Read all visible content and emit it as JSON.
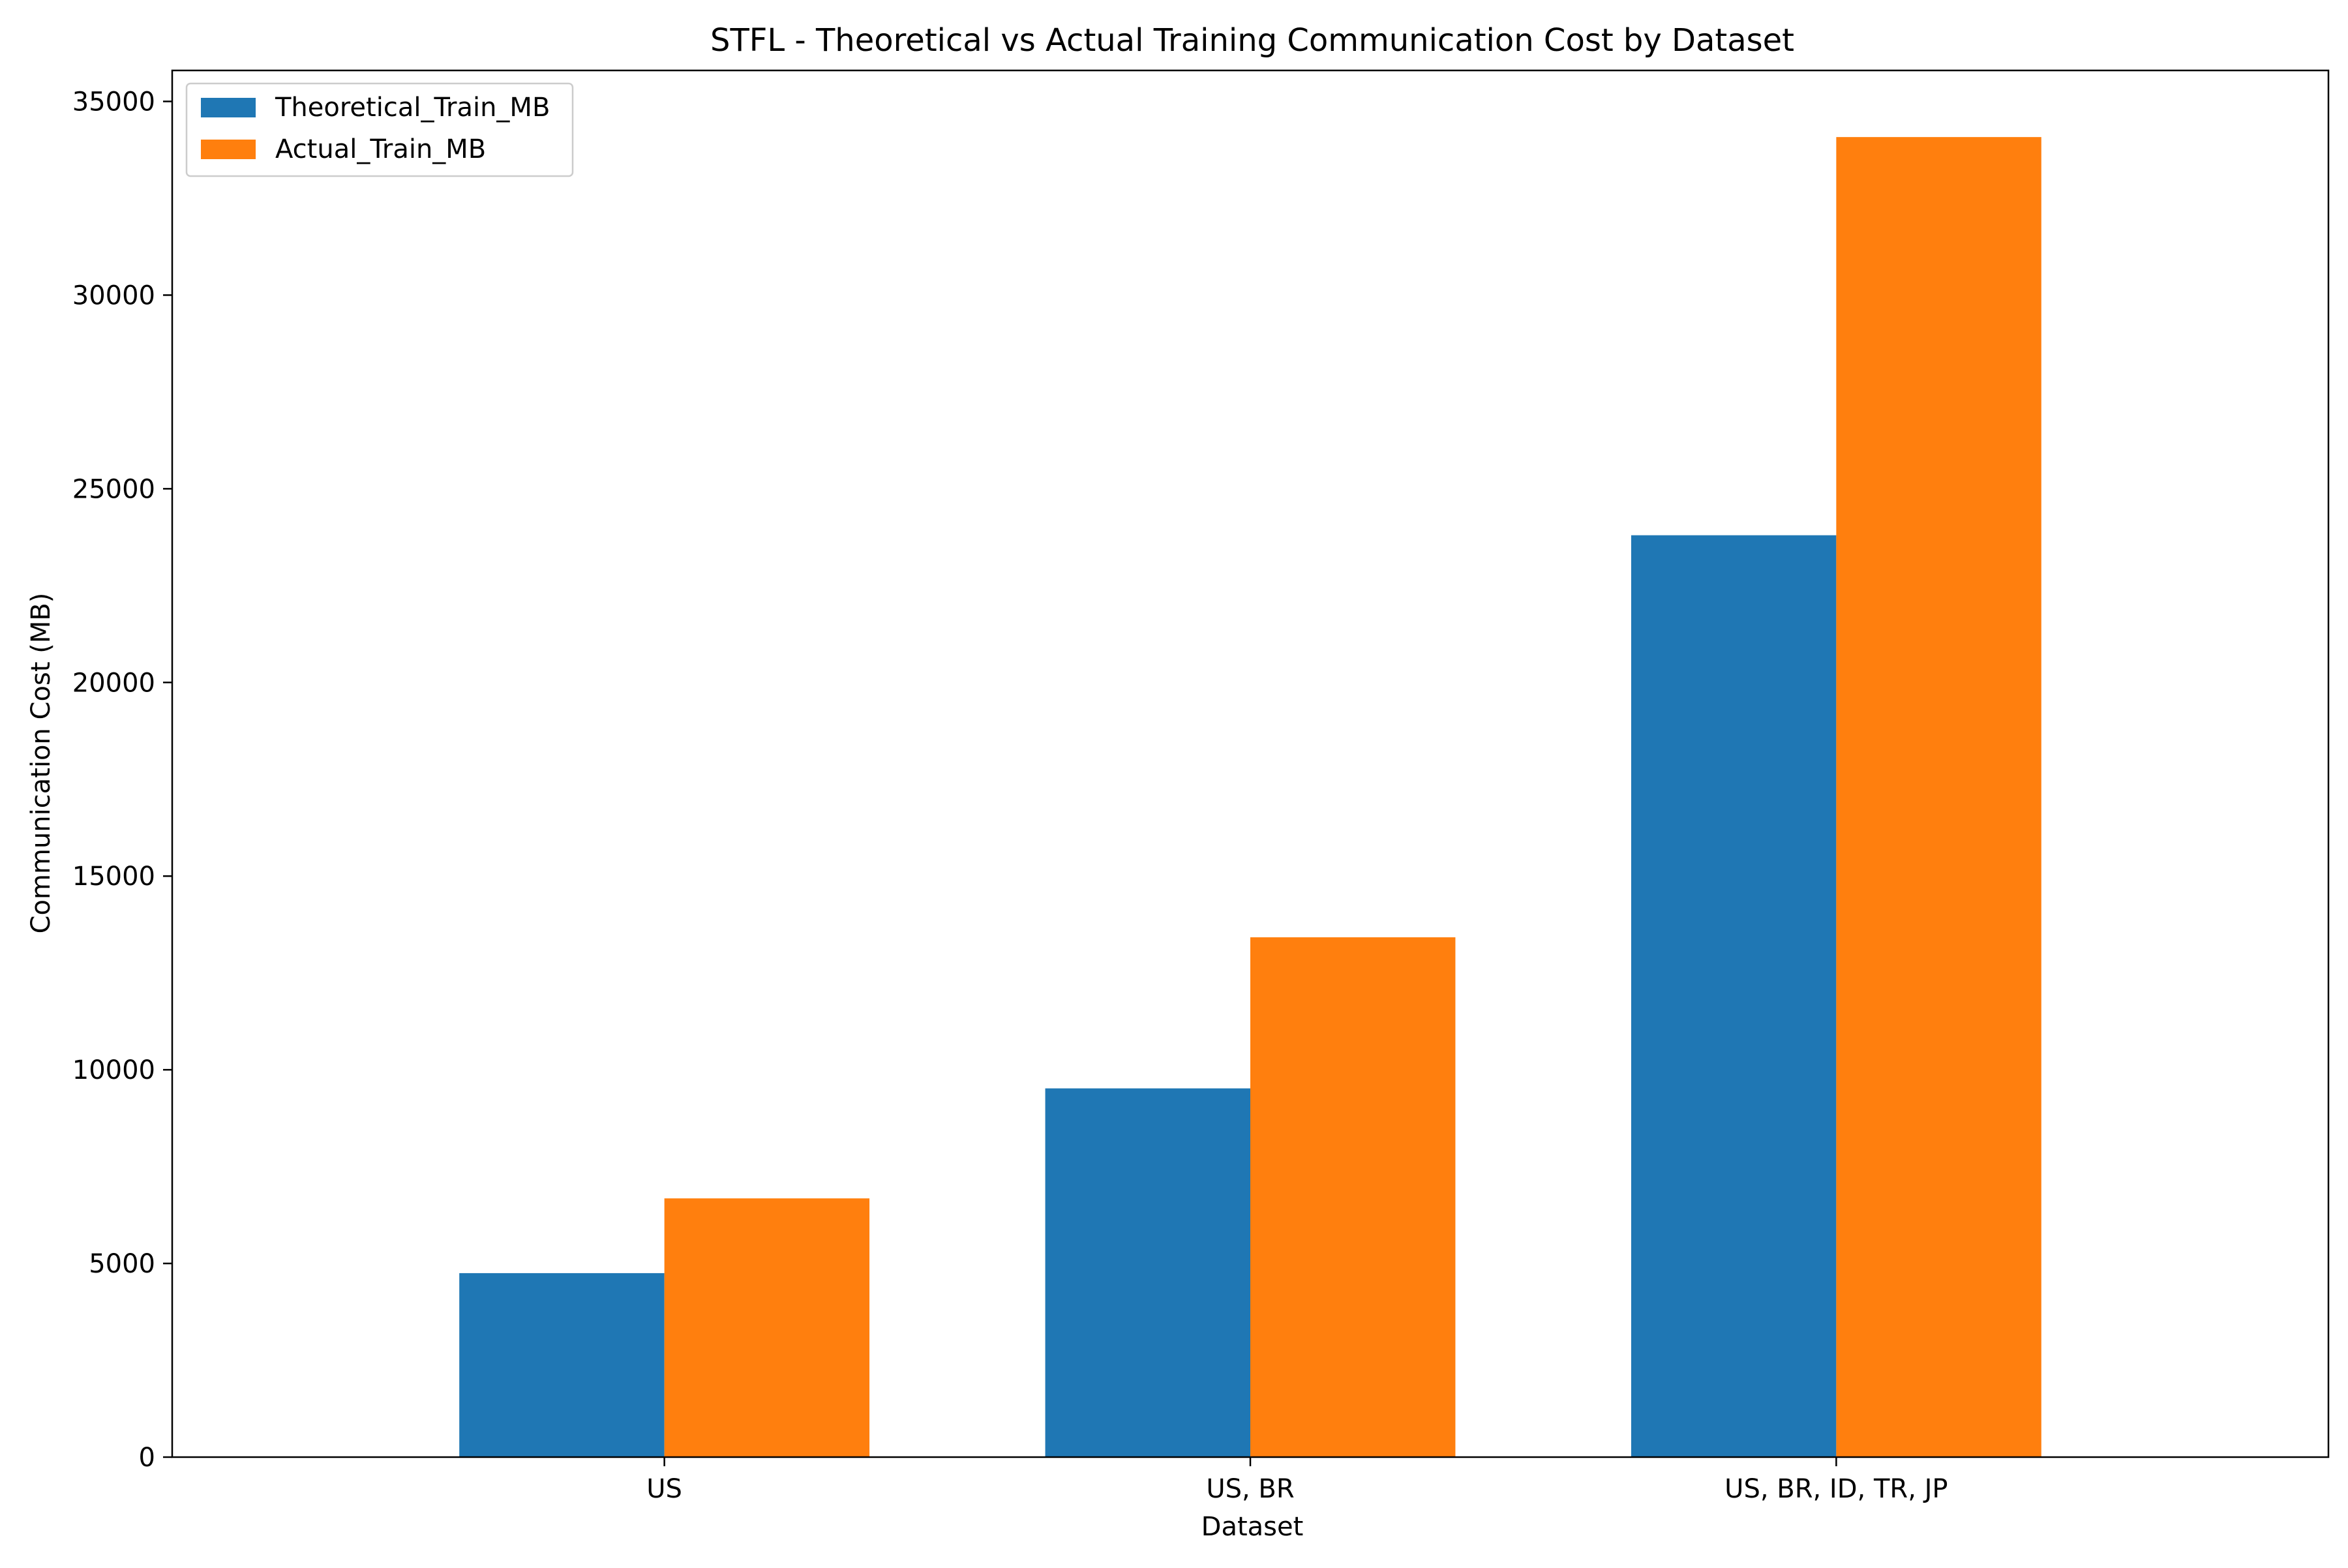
{
  "chart_data": {
    "type": "bar",
    "title": "STFL - Theoretical vs Actual Training Communication Cost by Dataset",
    "xlabel": "Dataset",
    "ylabel": "Communication Cost (MB)",
    "categories": [
      "US",
      "US, BR",
      "US, BR, ID, TR, JP"
    ],
    "series": [
      {
        "name": "Theoretical_Train_MB",
        "color": "#1f77b4",
        "values": [
          4750,
          9520,
          23800
        ]
      },
      {
        "name": "Actual_Train_MB",
        "color": "#ff7f0e",
        "values": [
          6680,
          13420,
          34080
        ]
      }
    ],
    "ylim": [
      0,
      35800
    ],
    "yticks": [
      0,
      5000,
      10000,
      15000,
      20000,
      25000,
      30000,
      35000
    ],
    "ytick_labels": [
      "0",
      "5000",
      "10000",
      "15000",
      "20000",
      "25000",
      "30000",
      "35000"
    ],
    "grid": false,
    "legend_position": "top-left"
  }
}
